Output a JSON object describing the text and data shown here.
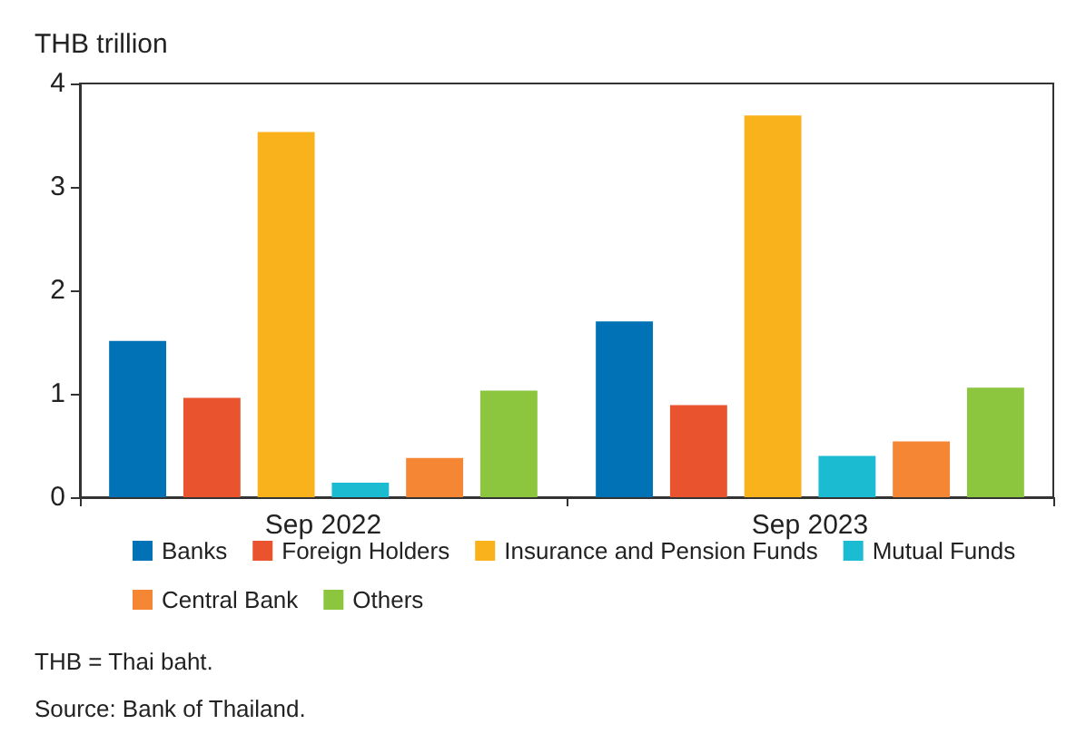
{
  "chart_data": {
    "type": "bar",
    "ylabel": "THB trillion",
    "categories": [
      "Sep 2022",
      "Sep 2023"
    ],
    "series": [
      {
        "name": "Banks",
        "color": "#0072b5",
        "values": [
          1.51,
          1.7
        ]
      },
      {
        "name": "Foreign Holders",
        "color": "#e9532d",
        "values": [
          0.96,
          0.89
        ]
      },
      {
        "name": "Insurance and Pension Funds",
        "color": "#f9b21b",
        "values": [
          3.53,
          3.69
        ]
      },
      {
        "name": "Mutual Funds",
        "color": "#1bbcd1",
        "values": [
          0.14,
          0.4
        ]
      },
      {
        "name": "Central Bank",
        "color": "#f58634",
        "values": [
          0.38,
          0.54
        ]
      },
      {
        "name": "Others",
        "color": "#8cc63f",
        "values": [
          1.03,
          1.06
        ]
      }
    ],
    "ylim": [
      0,
      4
    ],
    "yticks": [
      0,
      1,
      2,
      3,
      4
    ],
    "grid": false,
    "legend": "bottom",
    "annotations": [
      "THB = Thai baht.",
      "Source: Bank of Thailand."
    ]
  }
}
